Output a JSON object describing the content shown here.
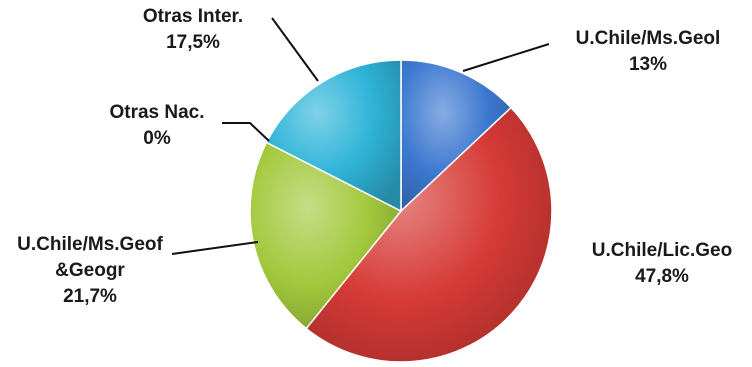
{
  "chart_data": {
    "type": "pie",
    "title": "",
    "slices": [
      {
        "label": "U.Chile/Ms.Geol",
        "value_label": "13%",
        "value": 13.0,
        "color": "#3c78d0"
      },
      {
        "label": "U.Chile/Lic.Geo",
        "value_label": "47,8%",
        "value": 47.8,
        "color": "#d63a36"
      },
      {
        "label": "U.Chile/Ms.Geof &Geogr",
        "label_lines": [
          "U.Chile/Ms.Geof",
          "&Geogr"
        ],
        "value_label": "21,7%",
        "value": 21.7,
        "color": "#a2c83c"
      },
      {
        "label": "Otras Nac.",
        "value_label": "0%",
        "value": 0.0,
        "color": "#8a5fb5"
      },
      {
        "label": "Otras Inter.",
        "value_label": "17,5%",
        "value": 17.5,
        "color": "#2fb4d8"
      }
    ],
    "start_angle": "12 o'clock",
    "direction": "clockwise",
    "legend": "none"
  }
}
